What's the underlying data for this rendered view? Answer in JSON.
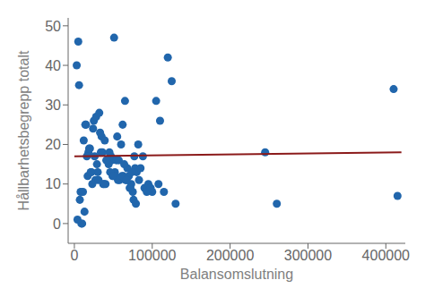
{
  "chart_data": {
    "type": "scatter",
    "xlabel": "Balansomslutning",
    "ylabel": "Hållbarhetsbegrepp totalt",
    "xlim": [
      -8000,
      425000
    ],
    "ylim": [
      -5,
      52
    ],
    "xticks": [
      0,
      100000,
      200000,
      300000,
      400000
    ],
    "yticks": [
      0,
      10,
      20,
      30,
      40,
      50
    ],
    "grid": false,
    "series": [
      {
        "type": "scatter",
        "color": "#2166ac",
        "x": [
          5000,
          8000,
          10000,
          12000,
          15000,
          18000,
          20000,
          22000,
          25000,
          28000,
          30000,
          32000,
          35000,
          38000,
          40000,
          42000,
          45000,
          48000,
          50000,
          52000,
          55000,
          58000,
          60000,
          62000,
          65000,
          68000,
          70000,
          72000,
          75000,
          78000,
          80000,
          82000,
          85000,
          90000,
          95000,
          100000,
          105000,
          110000,
          120000,
          125000,
          130000,
          245000,
          260000,
          410000,
          415000,
          3000,
          6000,
          9000,
          11000,
          14000,
          17000,
          21000,
          24000,
          27000,
          31000,
          33000,
          36000,
          39000,
          44000,
          47000,
          53000,
          56000,
          63000,
          66000,
          73000,
          77000,
          83000,
          88000,
          93000,
          98000,
          108000,
          115000,
          4000,
          7000,
          13000,
          16000,
          19000,
          23000,
          26000,
          29000,
          34000,
          37000,
          41000,
          46000,
          49000,
          51000,
          54000,
          57000,
          61000,
          64000,
          67000,
          71000,
          74000,
          76000,
          79000
        ],
        "values": [
          46,
          8,
          0,
          21,
          25,
          18,
          19,
          13,
          26,
          27,
          13,
          28,
          22,
          10,
          10,
          16,
          18,
          16,
          12,
          13,
          22,
          11,
          20,
          25,
          31,
          14,
          12,
          9,
          8,
          14,
          13,
          20,
          14,
          9,
          10,
          8,
          31,
          26,
          42,
          36,
          5,
          18,
          5,
          34,
          7,
          40,
          35,
          0,
          8,
          25,
          12,
          13,
          24,
          11,
          11,
          23,
          18,
          21,
          15,
          17,
          12,
          11,
          12,
          11,
          10,
          17,
          11,
          17,
          8,
          9,
          10,
          8,
          1,
          6,
          3,
          17,
          19,
          10,
          17,
          15,
          18,
          10,
          16,
          13,
          12,
          47,
          16,
          16,
          12,
          15,
          11,
          9,
          13,
          6,
          5
        ]
      },
      {
        "type": "line",
        "color": "#8b1a1a",
        "x": [
          0,
          420000
        ],
        "values": [
          17.0,
          18.0
        ]
      }
    ]
  }
}
